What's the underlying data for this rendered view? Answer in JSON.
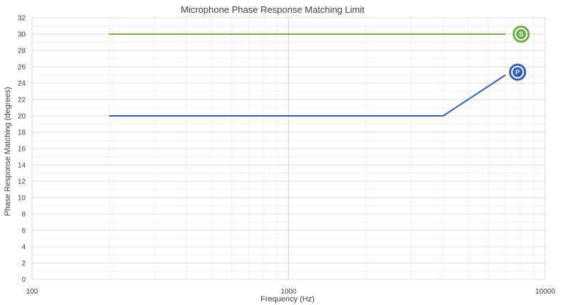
{
  "chart_data": {
    "type": "line",
    "title": "Microphone Phase Response Matching Limit",
    "xlabel": "Frequency (Hz)",
    "ylabel": "Phase Response Matching (degrees)",
    "xscale": "log",
    "xlim": [
      100,
      10000
    ],
    "ylim": [
      0,
      32
    ],
    "x_ticks": [
      "100",
      "1000",
      "10000"
    ],
    "y_ticks": [
      "0",
      "2",
      "4",
      "6",
      "8",
      "10",
      "12",
      "14",
      "16",
      "18",
      "20",
      "22",
      "24",
      "26",
      "28",
      "30",
      "32"
    ],
    "grid": true,
    "series": [
      {
        "marker_label": "S",
        "color": "#70ad47",
        "x": [
          200,
          7000
        ],
        "y": [
          30,
          30
        ]
      },
      {
        "marker_label": "P",
        "color": "#2e5fb4",
        "x": [
          200,
          4000,
          7000
        ],
        "y": [
          20,
          20,
          25
        ]
      }
    ]
  }
}
